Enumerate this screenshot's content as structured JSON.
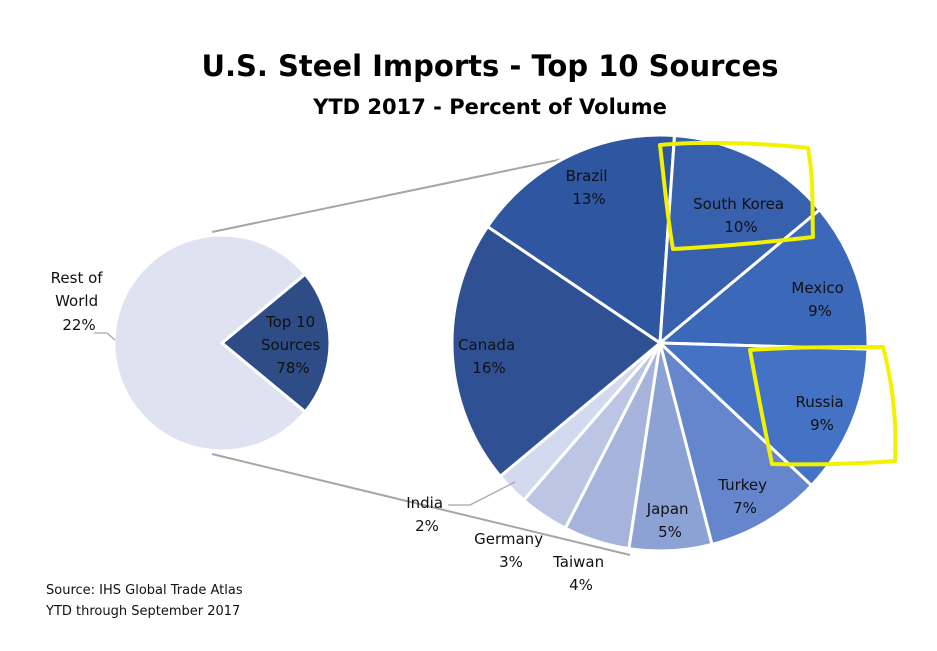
{
  "colors": {
    "background": "#ffffff",
    "highlight": "#f2f200",
    "connector": "#a6a6a6"
  },
  "chart_data": {
    "type": "pie",
    "subtype": "pie-of-pie",
    "title": "U.S. Steel Imports - Top 10 Sources",
    "subtitle": "YTD 2017 - Percent of Volume",
    "primary_pie": {
      "slices": [
        {
          "label": "Top 10 Sources",
          "label_lines": [
            "Top 10",
            "Sources"
          ],
          "value": 78,
          "value_label": "78%",
          "color": "#dfe3f1"
        },
        {
          "label": "Rest of World",
          "label_lines": [
            "Rest of",
            "World"
          ],
          "value": 22,
          "value_label": "22%",
          "color": "#2e4c86"
        }
      ]
    },
    "secondary_pie": {
      "slices": [
        {
          "label": "Brazil",
          "value": 13,
          "value_label": "13%",
          "color": "#2f56a0"
        },
        {
          "label": "South Korea",
          "value": 10,
          "value_label": "10%",
          "color": "#3861ad",
          "highlighted": true
        },
        {
          "label": "Mexico",
          "value": 9,
          "value_label": "9%",
          "color": "#3b68b9"
        },
        {
          "label": "Russia",
          "value": 9,
          "value_label": "9%",
          "color": "#4472c4",
          "highlighted": true
        },
        {
          "label": "Turkey",
          "value": 7,
          "value_label": "7%",
          "color": "#6585cc"
        },
        {
          "label": "Japan",
          "value": 5,
          "value_label": "5%",
          "color": "#8da2d4"
        },
        {
          "label": "Taiwan",
          "value": 4,
          "value_label": "4%",
          "color": "#a6b4dc"
        },
        {
          "label": "Germany",
          "value": 3,
          "value_label": "3%",
          "color": "#bcc6e4"
        },
        {
          "label": "India",
          "value": 2,
          "value_label": "2%",
          "color": "#d3d9ee"
        },
        {
          "label": "Canada",
          "value": 16,
          "value_label": "16%",
          "color": "#2f5193"
        }
      ]
    }
  },
  "footer": {
    "source": "Source: IHS Global Trade Atlas",
    "period": "YTD through September 2017"
  }
}
